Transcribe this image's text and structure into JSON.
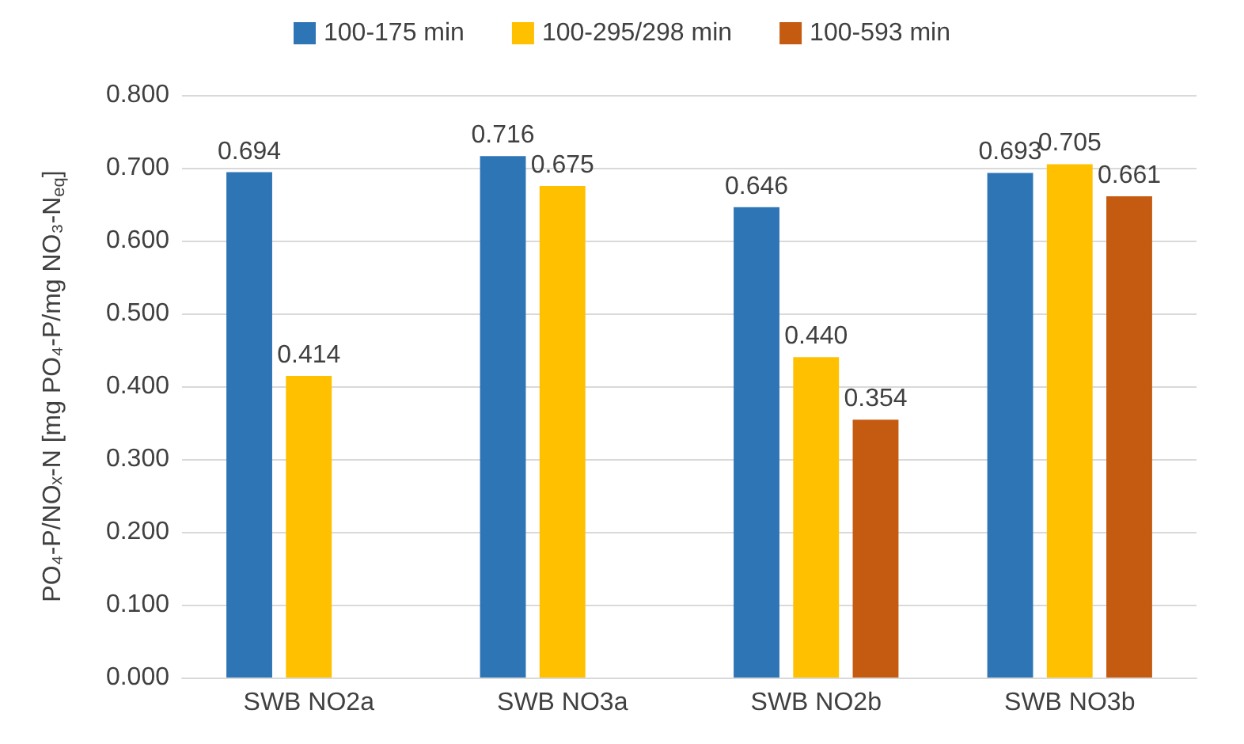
{
  "chart_data": {
    "type": "bar",
    "ylabel": "PO₄-P/NOₓ-N [mg PO₄-P/mg NO₃-N$_{eq}$]",
    "categories": [
      "SWB NO2a",
      "SWB NO3a",
      "SWB NO2b",
      "SWB NO3b"
    ],
    "series": [
      {
        "name": "100-175 min",
        "color": "#2e75b6",
        "values": [
          0.694,
          0.716,
          0.646,
          0.693
        ],
        "value_labels": [
          "0.694",
          "0.716",
          "0.646",
          "0.693"
        ]
      },
      {
        "name": "100-295/298 min",
        "color": "#ffc000",
        "values": [
          0.414,
          0.675,
          0.44,
          0.705
        ],
        "value_labels": [
          "0.414",
          "0.675",
          "0.440",
          "0.705"
        ]
      },
      {
        "name": "100-593 min",
        "color": "#c55a11",
        "values": [
          null,
          null,
          0.354,
          0.661
        ],
        "value_labels": [
          null,
          null,
          "0.354",
          "0.661"
        ]
      }
    ],
    "ylim": [
      0,
      0.8
    ],
    "yticks": [
      {
        "value": 0,
        "label": "0.000"
      },
      {
        "value": 0.1,
        "label": "0.100"
      },
      {
        "value": 0.2,
        "label": "0.200"
      },
      {
        "value": 0.3,
        "label": "0.300"
      },
      {
        "value": 0.4,
        "label": "0.400"
      },
      {
        "value": 0.5,
        "label": "0.500"
      },
      {
        "value": 0.6,
        "label": "0.600"
      },
      {
        "value": 0.7,
        "label": "0.700"
      },
      {
        "value": 0.8,
        "label": "0.800"
      }
    ],
    "grid": "y",
    "legend": "top"
  }
}
